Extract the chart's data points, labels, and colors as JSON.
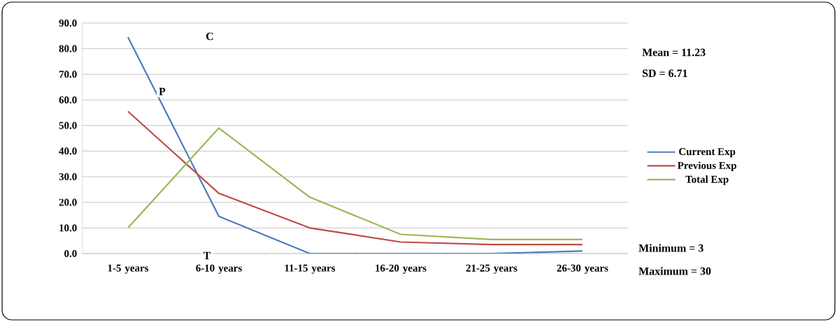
{
  "chart_data": {
    "type": "line",
    "categories": [
      "1-5  years",
      "6-10 years",
      "11-15 years",
      "16-20 years",
      "21-25 years",
      "26-30 years"
    ],
    "series": [
      {
        "name": "Current Exp",
        "color": "#4a7ebb",
        "values": [
          84.5,
          14.5,
          0,
          0,
          0,
          1
        ]
      },
      {
        "name": "Previous Exp",
        "color": "#be4b48",
        "values": [
          55.5,
          23.5,
          10,
          4.5,
          3.5,
          3.5
        ]
      },
      {
        "name": "Total Exp",
        "color": "#98b954",
        "values": [
          10,
          49,
          22,
          7.5,
          5.5,
          5.5
        ]
      }
    ],
    "ylim": [
      0,
      90
    ],
    "yticks": [
      {
        "value": 0,
        "label": "0.0"
      },
      {
        "value": 10,
        "label": "10.0"
      },
      {
        "value": 20,
        "label": "20.0"
      },
      {
        "value": 30,
        "label": "30.0"
      },
      {
        "value": 40,
        "label": "40.0"
      },
      {
        "value": 50,
        "label": "50.0"
      },
      {
        "value": 60,
        "label": "60.0"
      },
      {
        "value": 70,
        "label": "70.0"
      },
      {
        "value": 80,
        "label": "80.0"
      },
      {
        "value": 90,
        "label": "90.0"
      }
    ],
    "grid": "y",
    "legend": "right",
    "marker": "none",
    "line_style": "solid",
    "annotations": [
      "C",
      "P",
      "T",
      "Mean = 11.23",
      "SD = 6.71",
      "Minimum = 3",
      "Maximum = 30"
    ]
  }
}
